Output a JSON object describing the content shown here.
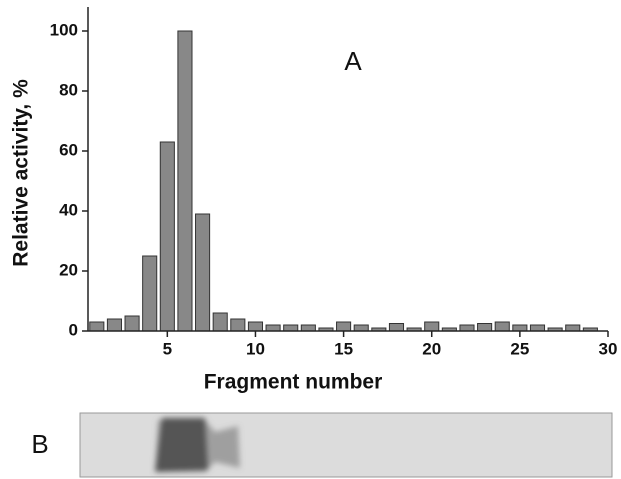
{
  "chart_data": {
    "type": "bar",
    "x": [
      1,
      2,
      3,
      4,
      5,
      6,
      7,
      8,
      9,
      10,
      11,
      12,
      13,
      14,
      15,
      16,
      17,
      18,
      19,
      20,
      21,
      22,
      23,
      24,
      25,
      26,
      27,
      28,
      29
    ],
    "values": [
      3,
      4,
      5,
      25,
      63,
      100,
      39,
      6,
      4,
      3,
      2,
      2,
      2,
      1,
      3,
      2,
      1,
      2.5,
      1,
      3,
      1,
      2,
      2.5,
      3,
      2,
      2,
      1,
      2,
      1
    ],
    "color": "#888888",
    "xlim": [
      0.5,
      30
    ],
    "xticks": [
      5,
      10,
      15,
      20,
      25,
      30
    ],
    "ylim": [
      0,
      108
    ],
    "yticks": [
      0,
      20,
      40,
      60,
      80,
      100
    ],
    "x_label": "Fragment number",
    "y_label": "Relative activity, %",
    "annotations": [
      "A",
      "B"
    ]
  }
}
